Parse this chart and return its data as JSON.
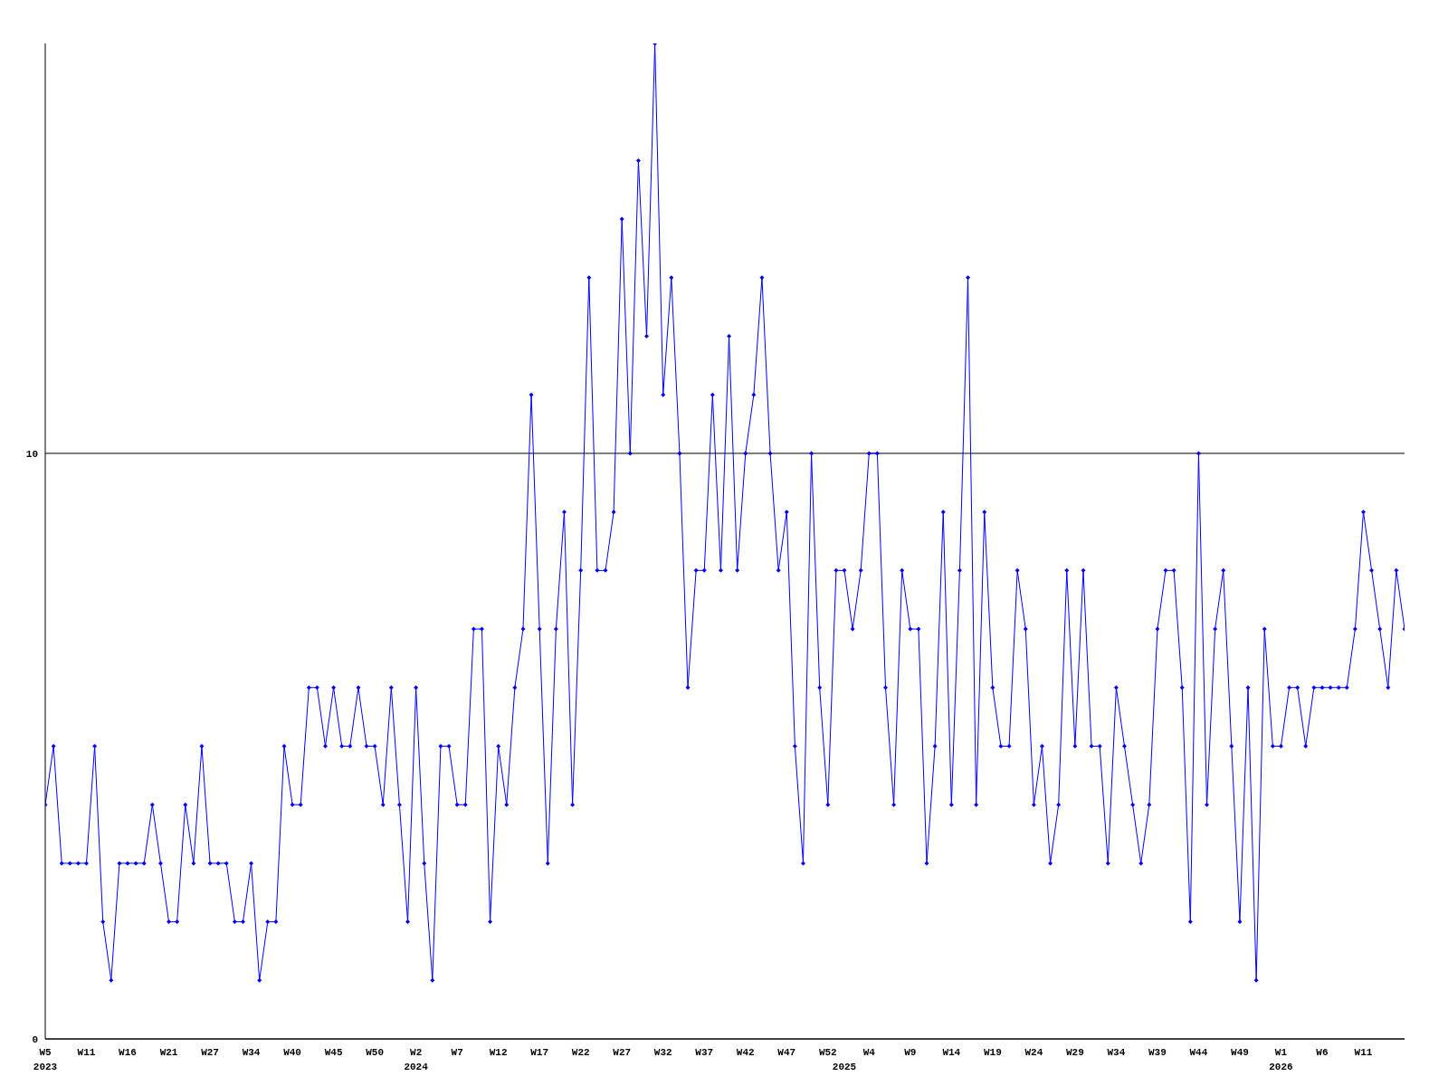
{
  "chart_data": {
    "type": "line",
    "categories": [
      "W5\n2023",
      null,
      null,
      null,
      null,
      "W11",
      null,
      null,
      null,
      null,
      "W16",
      null,
      null,
      null,
      null,
      "W21",
      null,
      null,
      null,
      null,
      "W27",
      null,
      null,
      null,
      null,
      "W34",
      null,
      null,
      null,
      null,
      "W40",
      null,
      null,
      null,
      null,
      "W45",
      null,
      null,
      null,
      null,
      "W50",
      null,
      null,
      null,
      null,
      "W2\n2024",
      null,
      null,
      null,
      null,
      "W7",
      null,
      null,
      null,
      null,
      "W12",
      null,
      null,
      null,
      null,
      "W17",
      null,
      null,
      null,
      null,
      "W22",
      null,
      null,
      null,
      null,
      "W27",
      null,
      null,
      null,
      null,
      "W32",
      null,
      null,
      null,
      null,
      "W37",
      null,
      null,
      null,
      null,
      "W42",
      null,
      null,
      null,
      null,
      "W47",
      null,
      null,
      null,
      null,
      "W52",
      null,
      "\n2025",
      null,
      null,
      "W4",
      null,
      null,
      null,
      null,
      "W9",
      null,
      null,
      null,
      null,
      "W14",
      null,
      null,
      null,
      null,
      "W19",
      null,
      null,
      null,
      null,
      "W24",
      null,
      null,
      null,
      null,
      "W29",
      null,
      null,
      null,
      null,
      "W34",
      null,
      null,
      null,
      null,
      "W39",
      null,
      null,
      null,
      null,
      "W44",
      null,
      null,
      null,
      null,
      "W49",
      null,
      null,
      null,
      null,
      "W1\n2026",
      null,
      null,
      null,
      null,
      "W6",
      null,
      null,
      null,
      null,
      "W11",
      null,
      null,
      null,
      null,
      null
    ],
    "series": [
      {
        "color": "#0000ff",
        "values": [
          4,
          5,
          3,
          3,
          3,
          3,
          5,
          2,
          1,
          3,
          3,
          3,
          3,
          4,
          3,
          2,
          2,
          4,
          3,
          5,
          3,
          3,
          3,
          2,
          2,
          3,
          1,
          2,
          2,
          5,
          4,
          4,
          6,
          6,
          5,
          6,
          5,
          5,
          6,
          5,
          5,
          4,
          6,
          4,
          2,
          6,
          3,
          1,
          5,
          5,
          4,
          4,
          7,
          7,
          2,
          5,
          4,
          6,
          7,
          11,
          7,
          3,
          7,
          9,
          4,
          8,
          13,
          8,
          8,
          9,
          14,
          10,
          15,
          12,
          17,
          11,
          13,
          10,
          6,
          8,
          8,
          11,
          8,
          12,
          8,
          10,
          11,
          13,
          10,
          8,
          9,
          5,
          3,
          10,
          6,
          4,
          8,
          8,
          7,
          8,
          10,
          10,
          6,
          4,
          8,
          7,
          7,
          3,
          5,
          9,
          4,
          8,
          13,
          4,
          9,
          6,
          5,
          5,
          8,
          7,
          4,
          5,
          3,
          4,
          8,
          5,
          8,
          5,
          5,
          3,
          6,
          5,
          4,
          3,
          4,
          7,
          8,
          8,
          6,
          2,
          10,
          4,
          7,
          8,
          5,
          2,
          6,
          1,
          7,
          5,
          5,
          6,
          6,
          5,
          6,
          6,
          6,
          6,
          6,
          7,
          9,
          8,
          7,
          6,
          8,
          7
        ]
      }
    ],
    "ylim": [
      0,
      17
    ],
    "yticks": [
      0,
      10
    ],
    "grid": "y",
    "marker": "diamond",
    "line_style": "solid"
  }
}
